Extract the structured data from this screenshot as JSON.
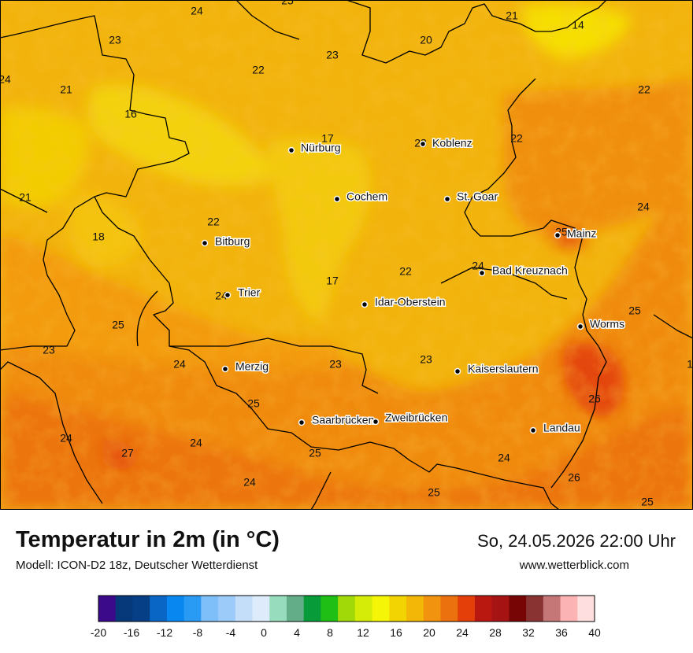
{
  "title": "Temperatur in 2m (in °C)",
  "model": "Modell: ICON-D2 18z, Deutscher Wetterdienst",
  "datetime": "So, 24.05.2026 22:00 Uhr",
  "website": "www.wetterblick.com",
  "colors": {
    "base": "#f4a512",
    "borders": "#000000",
    "frame": "#000000"
  },
  "legend": {
    "ticks": [
      "-20",
      "-16",
      "-12",
      "-8",
      "-4",
      "0",
      "4",
      "8",
      "12",
      "16",
      "20",
      "24",
      "28",
      "32",
      "36",
      "40"
    ],
    "colors": [
      "#3a0a8a",
      "#06397a",
      "#063f86",
      "#0966c5",
      "#0887f0",
      "#2a9bf5",
      "#7fbff9",
      "#9ccbfa",
      "#c4def9",
      "#ddebfb",
      "#97dcbd",
      "#63ae89",
      "#089b39",
      "#1fbf15",
      "#a1d808",
      "#d4ec08",
      "#f5f507",
      "#f2d403",
      "#f3b807",
      "#f1930e",
      "#eb700e",
      "#e43e09",
      "#b91811",
      "#a51413",
      "#780505",
      "#893333",
      "#c57677",
      "#fcb3b3",
      "#fedede"
    ]
  },
  "cities": [
    {
      "name": "Nürburg"
    },
    {
      "name": "Koblenz"
    },
    {
      "name": "Cochem"
    },
    {
      "name": "St. Goar"
    },
    {
      "name": "Mainz"
    },
    {
      "name": "Bitburg"
    },
    {
      "name": "Bad Kreuznach"
    },
    {
      "name": "Trier"
    },
    {
      "name": "Idar-Oberstein"
    },
    {
      "name": "Worms"
    },
    {
      "name": "Merzig"
    },
    {
      "name": "Kaiserslautern"
    },
    {
      "name": "Saarbrücken"
    },
    {
      "name": "Zweibrücken"
    },
    {
      "name": "Landau"
    }
  ],
  "values": [
    "25",
    "24",
    "21",
    "14",
    "23",
    "20",
    "23",
    "22",
    "24",
    "21",
    "22",
    "16",
    "17",
    "23",
    "22",
    "21",
    "24",
    "18",
    "22",
    "24",
    "25",
    "22",
    "17",
    "24",
    "25",
    "25",
    "23",
    "24",
    "23",
    "23",
    "1",
    "26",
    "25",
    "24",
    "27",
    "24",
    "25",
    "24",
    "24",
    "26",
    "25"
  ]
}
